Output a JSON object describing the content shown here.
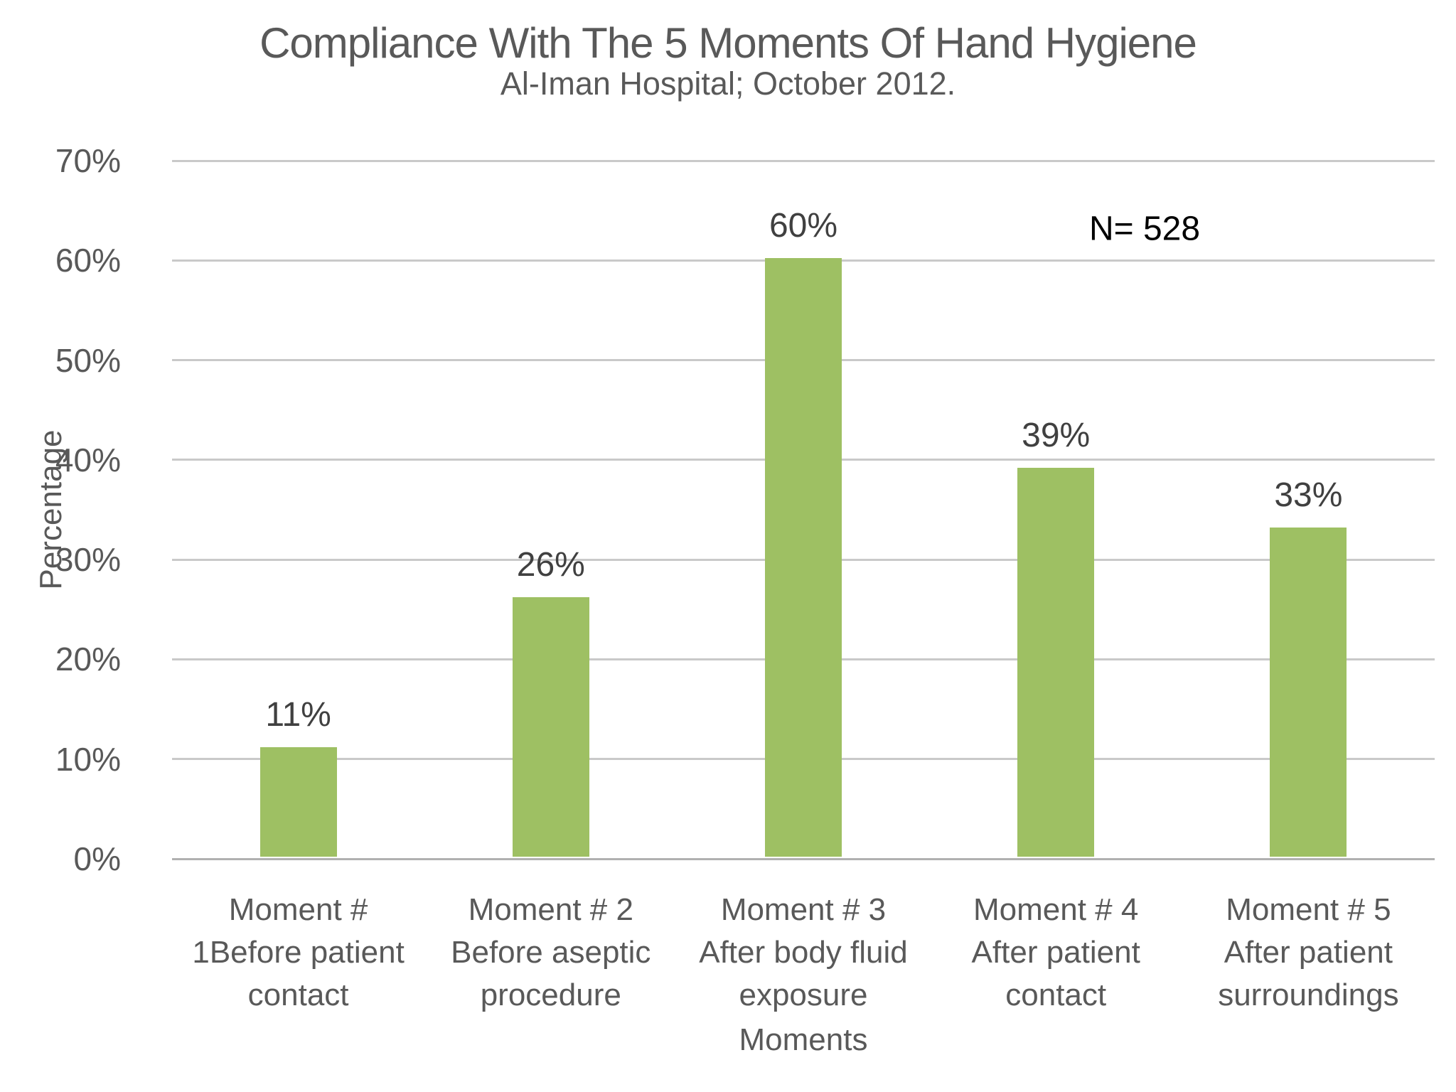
{
  "chart_data": {
    "type": "bar",
    "title": "Compliance With The 5 Moments Of Hand Hygiene",
    "subtitle": "Al-Iman Hospital; October 2012.",
    "xlabel": "Moments",
    "ylabel": "Percentage",
    "categories": [
      "Moment #\n1Before patient\ncontact",
      "Moment # 2\nBefore aseptic\nprocedure",
      "Moment # 3\nAfter body fluid\nexposure",
      "Moment # 4\nAfter patient\ncontact",
      "Moment # 5\nAfter patient\nsurroundings"
    ],
    "values": [
      11,
      26,
      60,
      39,
      33
    ],
    "value_labels": [
      "11%",
      "26%",
      "60%",
      "39%",
      "33%"
    ],
    "annotation": "N= 528",
    "ylim": [
      0,
      70
    ],
    "ytick_step": 10,
    "ytick_labels": [
      "0%",
      "10%",
      "20%",
      "30%",
      "40%",
      "50%",
      "60%",
      "70%"
    ],
    "grid": true,
    "legend_position": "none",
    "bar_color": "#9ec063",
    "colors": {
      "title_text": "#595959",
      "tick_text": "#595959",
      "value_label_text": "#404040",
      "annotation_text": "#000000",
      "gridline": "#c9c9c9",
      "axis_line": "#b0b0b0"
    }
  }
}
